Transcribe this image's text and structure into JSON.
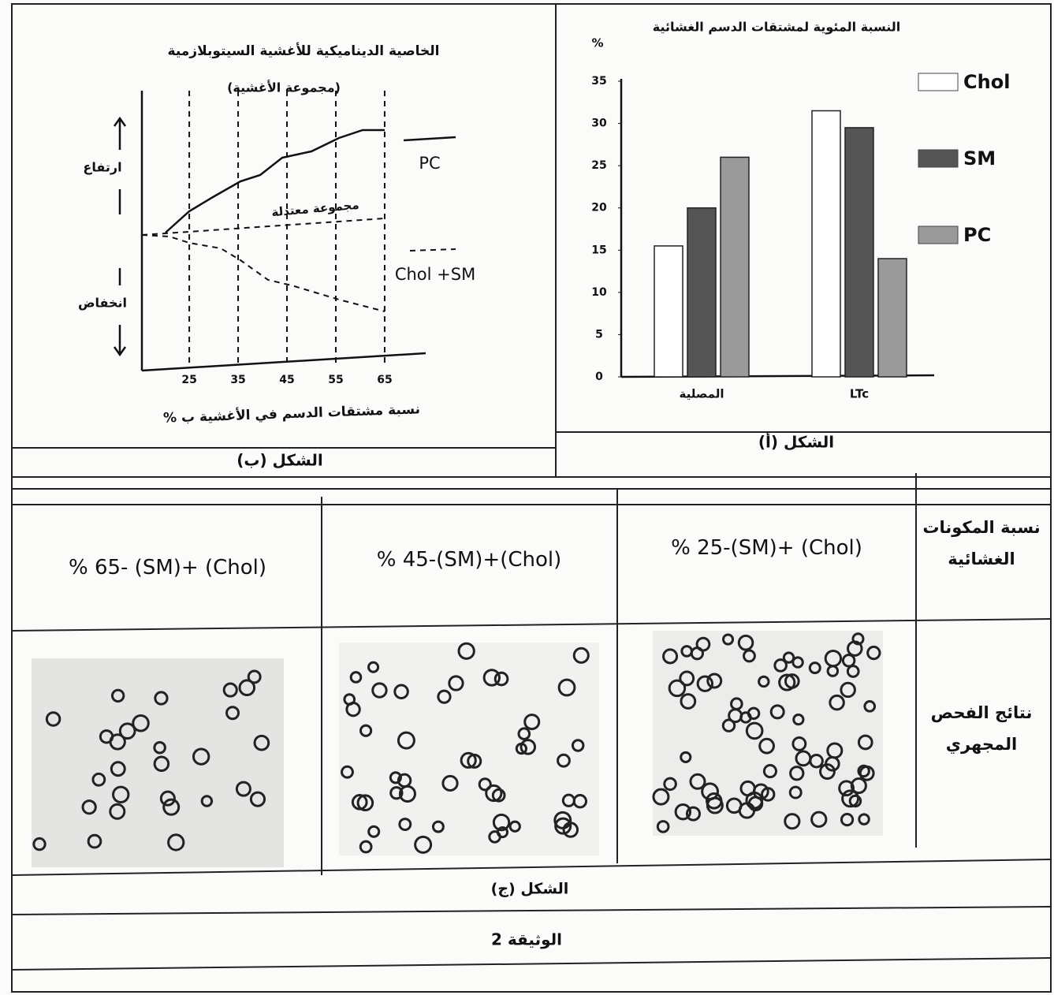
{
  "figure_a": {
    "type": "bar",
    "title": "النسبة المئوية لمشتقات الدسم الغشائية",
    "y_unit": "%",
    "categories": [
      "المصلية",
      "LTc"
    ],
    "series": [
      {
        "name": "Chol",
        "color": "#ffffff",
        "values": [
          15.5,
          31.5
        ]
      },
      {
        "name": "SM",
        "color": "#555555",
        "values": [
          20,
          29.5
        ]
      },
      {
        "name": "PC",
        "color": "#9a9a9a",
        "values": [
          26,
          14
        ]
      }
    ],
    "ylim": [
      0,
      35
    ],
    "yticks": [
      0,
      5,
      10,
      15,
      20,
      25,
      30,
      35
    ],
    "caption": "الشكل (أ)"
  },
  "figure_b": {
    "type": "line",
    "title": "الخاصية الديناميكية للأغشية السيتوبلازمية",
    "subtitle": "(مجموعة الأغشية)",
    "x_label": "نسبة مشتقات الدسم في الأغشية ب %",
    "y_up_label": "ارتفاع",
    "y_down_label": "انخفاض",
    "xlim": [
      15.3,
      73.4
    ],
    "xticks": [
      25,
      35,
      45,
      55,
      65
    ],
    "series_labels": [
      "PC",
      "Chol +SM"
    ],
    "reference_label": "مجموعة معتدلة",
    "caption": "الشكل (ب)"
  },
  "figure_c": {
    "row_headers": [
      "نسبة المكونات الغشائية",
      "نتائج الفحص المجهري"
    ],
    "columns": [
      "% 65- (SM)+ (Chol)",
      "% 45-(SM)+(Chol)",
      "% 25-(SM)+ (Chol)"
    ],
    "caption": "الشكل (ج)"
  },
  "document_title": "الوثيقة 2"
}
